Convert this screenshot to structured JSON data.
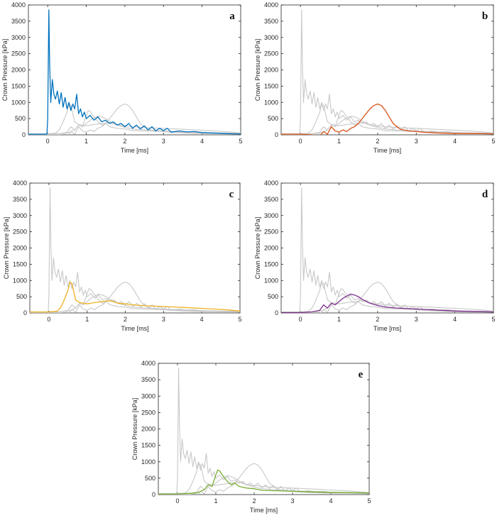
{
  "figure": {
    "panel_count": 5
  },
  "chart_data": [
    {
      "type": "line",
      "panel_label": "a",
      "xlabel": "Time [ms]",
      "ylabel": "Crown Pressure [kPa]",
      "xlim": [
        -0.5,
        5
      ],
      "ylim": [
        0,
        4000
      ],
      "xticks": [
        0,
        1,
        2,
        3,
        4,
        5
      ],
      "yticks": [
        0,
        500,
        1000,
        1500,
        2000,
        2500,
        3000,
        3500,
        4000
      ],
      "highlight_series": "a",
      "highlight_color": "#0072BD",
      "background_color": "#c8c8c8"
    },
    {
      "type": "line",
      "panel_label": "b",
      "xlabel": "Time [ms]",
      "ylabel": "Crown Pressure [kPa]",
      "xlim": [
        -0.5,
        5
      ],
      "ylim": [
        0,
        4000
      ],
      "xticks": [
        0,
        1,
        2,
        3,
        4,
        5
      ],
      "yticks": [
        0,
        500,
        1000,
        1500,
        2000,
        2500,
        3000,
        3500,
        4000
      ],
      "highlight_series": "b",
      "highlight_color": "#D95319",
      "background_color": "#c8c8c8"
    },
    {
      "type": "line",
      "panel_label": "c",
      "xlabel": "Time [ms]",
      "ylabel": "Crown Pressure [kPa]",
      "xlim": [
        -0.5,
        5
      ],
      "ylim": [
        0,
        4000
      ],
      "xticks": [
        0,
        1,
        2,
        3,
        4,
        5
      ],
      "yticks": [
        0,
        500,
        1000,
        1500,
        2000,
        2500,
        3000,
        3500,
        4000
      ],
      "highlight_series": "c",
      "highlight_color": "#EDB120",
      "background_color": "#c8c8c8"
    },
    {
      "type": "line",
      "panel_label": "d",
      "xlabel": "Time [ms]",
      "ylabel": "Crown Pressure [kPa]",
      "xlim": [
        -0.5,
        5
      ],
      "ylim": [
        0,
        4000
      ],
      "xticks": [
        0,
        1,
        2,
        3,
        4,
        5
      ],
      "yticks": [
        0,
        500,
        1000,
        1500,
        2000,
        2500,
        3000,
        3500,
        4000
      ],
      "highlight_series": "d",
      "highlight_color": "#7E2F8E",
      "background_color": "#c8c8c8"
    },
    {
      "type": "line",
      "panel_label": "e",
      "xlabel": "Time [ms]",
      "ylabel": "Crown Pressure [kPa]",
      "xlim": [
        -0.5,
        5
      ],
      "ylim": [
        0,
        4000
      ],
      "xticks": [
        0,
        1,
        2,
        3,
        4,
        5
      ],
      "yticks": [
        0,
        500,
        1000,
        1500,
        2000,
        2500,
        3000,
        3500,
        4000
      ],
      "highlight_series": "e",
      "highlight_color": "#77AC30",
      "background_color": "#c8c8c8"
    }
  ],
  "series": {
    "a": {
      "x": [
        -0.5,
        -0.02,
        0.0,
        0.03,
        0.05,
        0.08,
        0.12,
        0.16,
        0.2,
        0.25,
        0.3,
        0.35,
        0.4,
        0.45,
        0.5,
        0.55,
        0.6,
        0.65,
        0.7,
        0.75,
        0.8,
        0.85,
        0.9,
        0.95,
        1.0,
        1.1,
        1.2,
        1.3,
        1.4,
        1.5,
        1.6,
        1.7,
        1.8,
        1.9,
        2.0,
        2.1,
        2.2,
        2.3,
        2.4,
        2.5,
        2.6,
        2.7,
        2.8,
        2.9,
        3.0,
        3.1,
        3.2,
        3.4,
        3.6,
        3.8,
        4.0,
        4.2,
        4.4,
        4.6,
        4.8,
        5.0
      ],
      "y": [
        20,
        20,
        500,
        3850,
        2200,
        1000,
        1700,
        1250,
        1100,
        1350,
        950,
        1300,
        850,
        1150,
        800,
        1000,
        750,
        950,
        800,
        1250,
        650,
        800,
        550,
        700,
        500,
        600,
        450,
        550,
        400,
        450,
        350,
        400,
        300,
        350,
        250,
        350,
        200,
        300,
        180,
        280,
        150,
        250,
        120,
        200,
        130,
        200,
        80,
        120,
        90,
        100,
        70,
        60,
        50,
        40,
        30,
        30
      ]
    },
    "b": {
      "x": [
        -0.5,
        0.0,
        0.3,
        0.5,
        0.6,
        0.7,
        0.8,
        0.9,
        1.0,
        1.1,
        1.2,
        1.3,
        1.4,
        1.5,
        1.6,
        1.7,
        1.8,
        1.9,
        2.0,
        2.1,
        2.2,
        2.3,
        2.4,
        2.5,
        2.6,
        2.8,
        3.0,
        3.2,
        3.5,
        4.0,
        4.5,
        5.0
      ],
      "y": [
        20,
        20,
        0,
        -30,
        100,
        20,
        250,
        120,
        80,
        150,
        100,
        200,
        250,
        350,
        500,
        650,
        800,
        900,
        950,
        900,
        750,
        550,
        350,
        250,
        170,
        120,
        100,
        80,
        60,
        40,
        40,
        30
      ]
    },
    "c": {
      "x": [
        -0.5,
        0.0,
        0.2,
        0.3,
        0.4,
        0.5,
        0.55,
        0.6,
        0.65,
        0.7,
        0.8,
        0.9,
        1.0,
        1.2,
        1.4,
        1.6,
        1.8,
        2.0,
        2.2,
        2.5,
        3.0,
        3.5,
        4.0,
        4.5,
        4.8,
        5.0
      ],
      "y": [
        30,
        30,
        50,
        150,
        400,
        700,
        950,
        900,
        650,
        400,
        320,
        300,
        280,
        320,
        350,
        380,
        300,
        280,
        250,
        220,
        200,
        170,
        140,
        110,
        80,
        60
      ]
    },
    "d": {
      "x": [
        -0.5,
        0.0,
        0.3,
        0.5,
        0.6,
        0.7,
        0.8,
        0.9,
        1.0,
        1.1,
        1.2,
        1.3,
        1.4,
        1.5,
        1.6,
        1.8,
        2.0,
        2.2,
        2.5,
        3.0,
        3.5,
        4.0,
        4.5,
        5.0
      ],
      "y": [
        10,
        10,
        30,
        80,
        250,
        150,
        300,
        250,
        350,
        450,
        520,
        580,
        550,
        500,
        420,
        300,
        230,
        180,
        150,
        120,
        90,
        60,
        40,
        30
      ]
    },
    "e": {
      "x": [
        -0.5,
        0.0,
        0.5,
        0.7,
        0.8,
        0.9,
        1.0,
        1.05,
        1.1,
        1.2,
        1.3,
        1.4,
        1.5,
        1.6,
        1.8,
        2.0,
        2.2,
        2.5,
        3.0,
        3.5,
        4.0,
        4.5,
        5.0
      ],
      "y": [
        20,
        20,
        50,
        150,
        300,
        250,
        600,
        750,
        720,
        550,
        400,
        300,
        350,
        250,
        200,
        180,
        130,
        120,
        100,
        80,
        70,
        60,
        50
      ]
    }
  }
}
